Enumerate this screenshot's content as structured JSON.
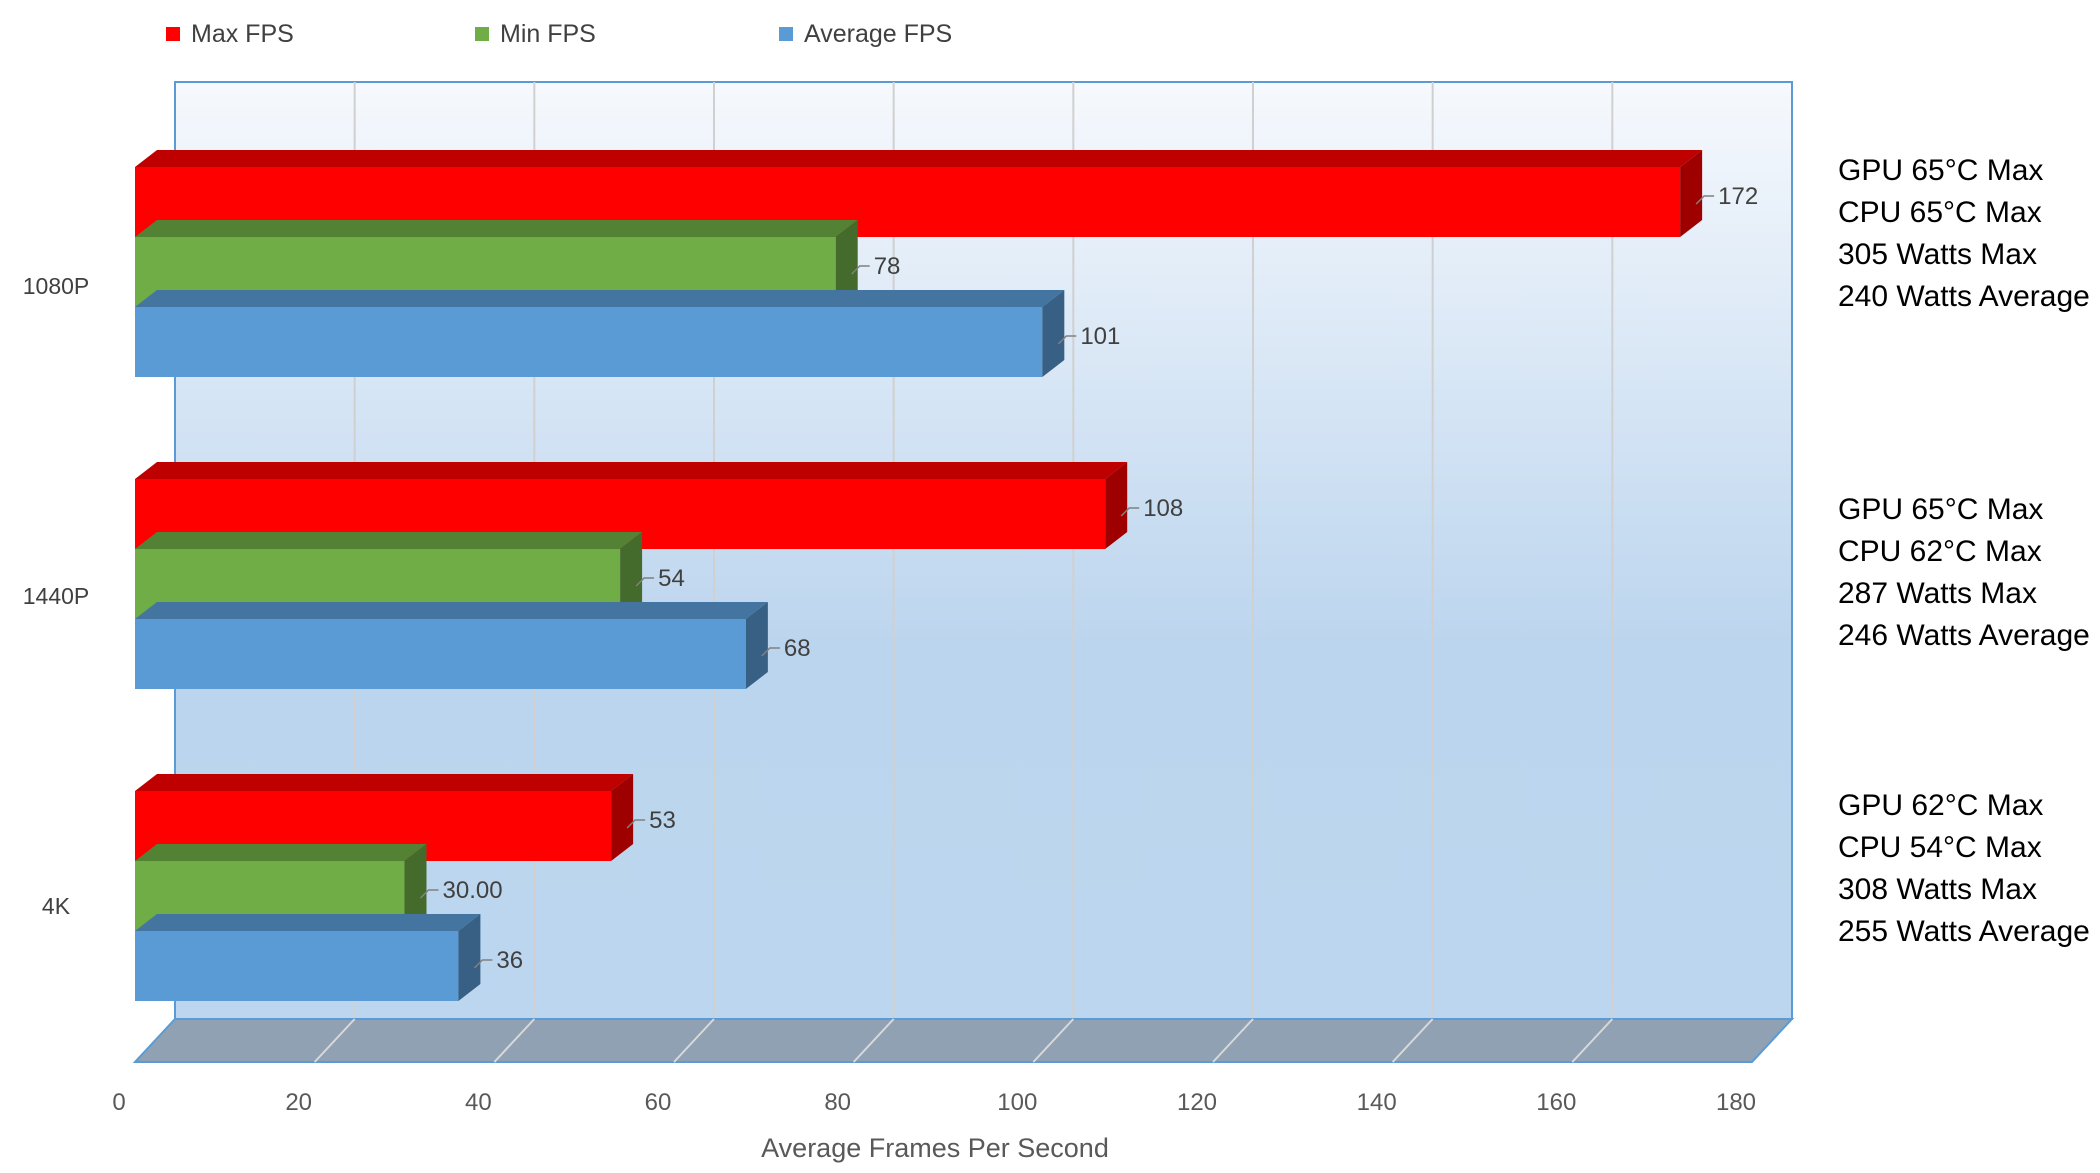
{
  "chart_data": {
    "type": "bar",
    "orientation": "horizontal",
    "three_d": true,
    "categories": [
      "1080P",
      "1440P",
      "4K"
    ],
    "series": [
      {
        "name": "Max FPS",
        "color": "#ff0000",
        "values": [
          172,
          108,
          53
        ],
        "labels": [
          "172",
          "108",
          "53"
        ]
      },
      {
        "name": "Min FPS",
        "color": "#70ad47",
        "values": [
          78,
          54,
          30
        ],
        "labels": [
          "78",
          "54",
          "30.00"
        ]
      },
      {
        "name": "Average FPS",
        "color": "#5b9bd5",
        "values": [
          101,
          68,
          36
        ],
        "labels": [
          "101",
          "68",
          "36"
        ]
      }
    ],
    "xlabel": "Average Frames Per Second",
    "xlim": [
      0,
      180
    ],
    "xticks": [
      "0",
      "20",
      "40",
      "60",
      "80",
      "100",
      "120",
      "140",
      "160",
      "180"
    ],
    "grid": true,
    "legend_position": "top",
    "annotations": [
      {
        "category": "1080P",
        "lines": [
          "GPU 65°C Max",
          "CPU 65°C Max",
          "305 Watts Max",
          "240 Watts Average"
        ]
      },
      {
        "category": "1440P",
        "lines": [
          "GPU 65°C Max",
          "CPU 62°C Max",
          "287 Watts Max",
          "246 Watts Average"
        ]
      },
      {
        "category": "4K",
        "lines": [
          "GPU 62°C Max",
          "CPU 54°C Max",
          "308 Watts Max",
          "255 Watts Average"
        ]
      }
    ]
  }
}
